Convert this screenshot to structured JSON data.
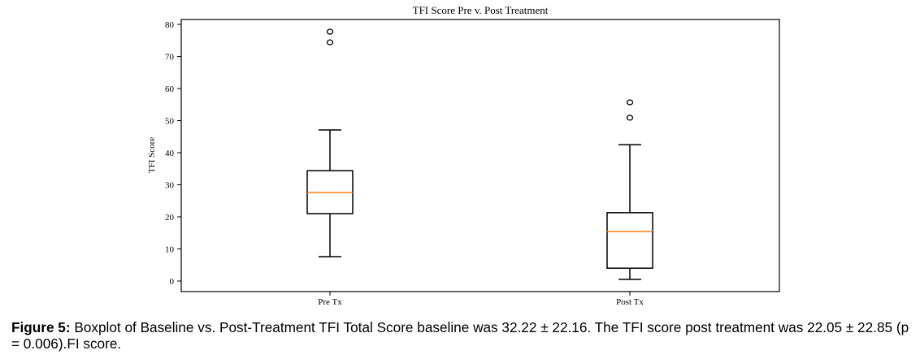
{
  "chart_data": {
    "type": "boxplot",
    "title": "TFI Score Pre v. Post Treatment",
    "xlabel": "",
    "ylabel": "TFI Score",
    "ylim": [
      -3,
      82
    ],
    "yticks": [
      0,
      10,
      20,
      30,
      40,
      50,
      60,
      70,
      80
    ],
    "categories": [
      "Pre Tx",
      "Post Tx"
    ],
    "grid": false,
    "legend": "none",
    "colors": {
      "box": "#000000",
      "median": "#ff7f0e",
      "frame": "#000000"
    },
    "series": [
      {
        "name": "Pre Tx",
        "whisker_low": 7.6,
        "q1": 21.0,
        "median": 27.6,
        "q3": 34.4,
        "whisker_high": 47.1,
        "outliers": [
          74.4,
          77.7
        ]
      },
      {
        "name": "Post Tx",
        "whisker_low": 0.5,
        "q1": 4.0,
        "median": 15.4,
        "q3": 21.3,
        "whisker_high": 42.5,
        "outliers": [
          50.9,
          55.7
        ]
      }
    ]
  },
  "caption": {
    "label": "Figure 5:",
    "text": " Boxplot of Baseline vs. Post-Treatment TFI Total Score baseline was 32.22 ± 22.16. The TFI score post treatment was 22.05 ± 22.85 (p = 0.006).FI score."
  }
}
